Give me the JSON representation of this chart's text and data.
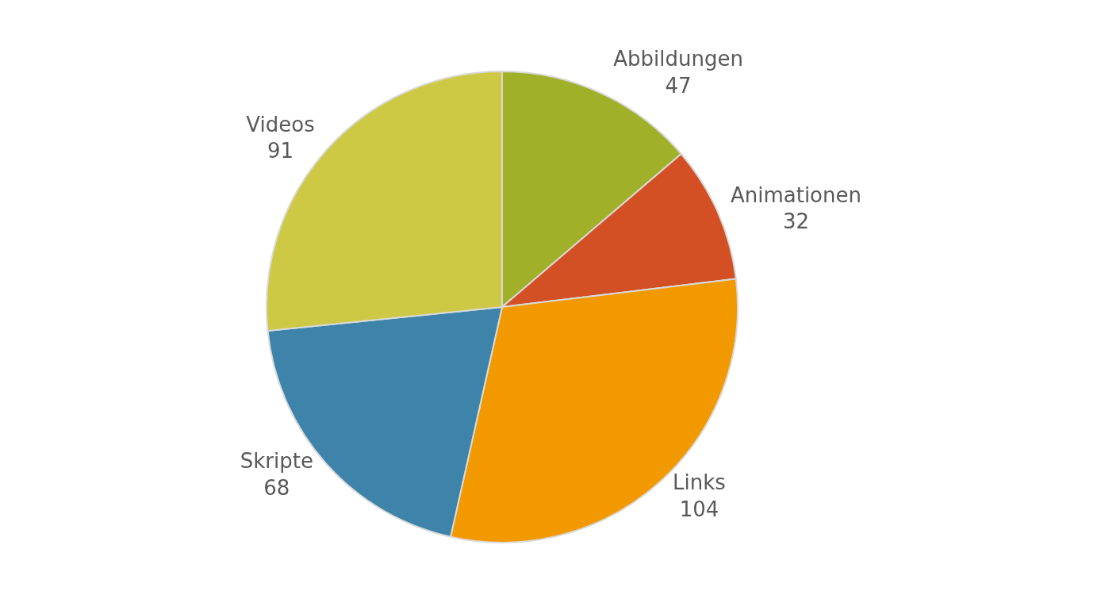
{
  "chart_data": {
    "type": "pie",
    "categories": [
      "Abbildungen",
      "Animationen",
      "Links",
      "Skripte",
      "Videos"
    ],
    "values": [
      47,
      32,
      104,
      68,
      91
    ],
    "colors": [
      "#a0b028",
      "#d35024",
      "#f29900",
      "#3e83aa",
      "#cdc945"
    ],
    "data_labels": true,
    "legend": false
  }
}
